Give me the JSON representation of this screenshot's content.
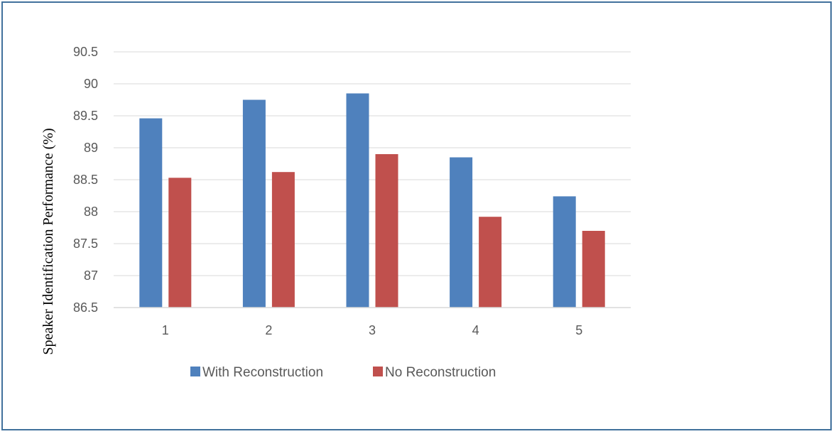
{
  "chart_data": {
    "type": "bar",
    "categories": [
      "1",
      "2",
      "3",
      "4",
      "5"
    ],
    "series": [
      {
        "name": "With Reconstruction",
        "color": "#4f81bd",
        "values": [
          89.46,
          89.75,
          89.85,
          88.85,
          88.24
        ]
      },
      {
        "name": "No Reconstruction",
        "color": "#c0504d",
        "values": [
          88.53,
          88.62,
          88.9,
          87.92,
          87.7
        ]
      }
    ],
    "ylabel": "Speaker Identification Performance (%)",
    "xlabel": "",
    "ylim": [
      86.5,
      90.5
    ],
    "yticks": [
      "86.5",
      "87",
      "87.5",
      "88",
      "88.5",
      "89",
      "89.5",
      "90",
      "90.5"
    ],
    "grid": true,
    "legend_position": "bottom"
  }
}
